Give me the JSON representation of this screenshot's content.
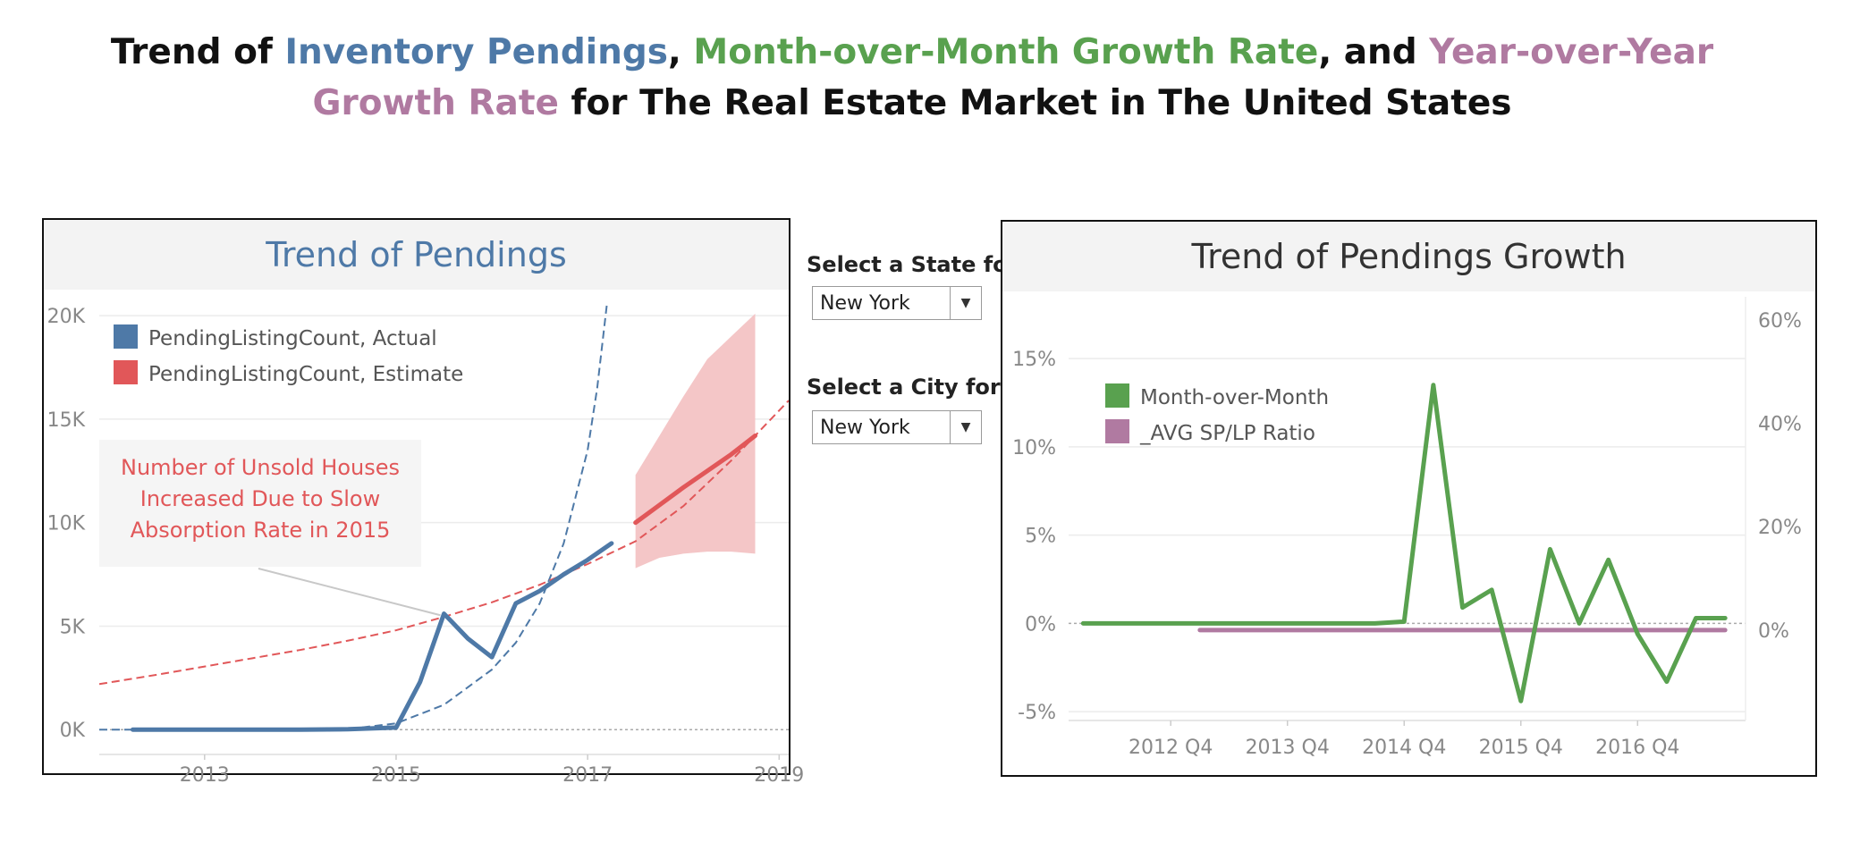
{
  "page": {
    "title_parts": [
      {
        "text": "Trend of ",
        "color": "#111111"
      },
      {
        "text": "Inventory Pendings",
        "color": "#4e79a7"
      },
      {
        "text": ", ",
        "color": "#111111"
      },
      {
        "text": "Month-over-Month Growth Rate",
        "color": "#59a14f"
      },
      {
        "text": ", and ",
        "color": "#111111"
      },
      {
        "text": "Year-over-Year Growth Rate",
        "color": "#b07aa1"
      },
      {
        "text": " for The Real Estate Market in The United States",
        "color": "#111111"
      }
    ]
  },
  "controls": {
    "state_label": "Select a State fo..",
    "state_value": "New York",
    "city_label": "Select a City for ..",
    "city_value": "New York"
  },
  "chart_data": [
    {
      "type": "line",
      "title": "Trend of Pendings",
      "x_ticks": [
        "2013",
        "2015",
        "2017",
        "2019"
      ],
      "y_ticks": [
        "0K",
        "5K",
        "10K",
        "15K",
        "20K"
      ],
      "xlim": [
        2011.9,
        2019.1
      ],
      "ylim": [
        -1200,
        21000
      ],
      "grid": true,
      "legend_position": "top-left",
      "series": [
        {
          "name": "PendingListingCount, Actual",
          "color": "#4e79a7",
          "x": [
            2012.25,
            2013.0,
            2014.0,
            2014.5,
            2015.0,
            2015.25,
            2015.5,
            2015.75,
            2016.0,
            2016.25,
            2016.5,
            2016.75,
            2017.0,
            2017.25
          ],
          "y": [
            0,
            0,
            0,
            20,
            100,
            2300,
            5600,
            4400,
            3500,
            6100,
            6700,
            7500,
            8200,
            9000
          ]
        },
        {
          "name": "PendingListingCount, Estimate",
          "color": "#e15759",
          "x": [
            2017.5,
            2017.75,
            2018.0,
            2018.25,
            2018.5,
            2018.75
          ],
          "y": [
            10000,
            10850,
            11700,
            12500,
            13300,
            14200
          ],
          "band_upper": [
            12300,
            14200,
            16100,
            17900,
            19000,
            20100
          ],
          "band_lower": [
            7800,
            8300,
            8500,
            8600,
            8600,
            8500
          ],
          "band_color": "#f4c6c7"
        }
      ],
      "trend_lines": [
        {
          "color": "#4e79a7",
          "x": [
            2011.9,
            2013.0,
            2014.0,
            2014.5,
            2015.0,
            2015.5,
            2016.0,
            2016.25,
            2016.5,
            2016.75,
            2017.0,
            2017.1,
            2017.2
          ],
          "y": [
            0,
            0,
            0,
            30,
            300,
            1200,
            2900,
            4200,
            6100,
            9000,
            13500,
            16500,
            20500
          ]
        },
        {
          "color": "#e15759",
          "x": [
            2011.9,
            2012.5,
            2013.0,
            2013.5,
            2014.0,
            2014.5,
            2015.0,
            2015.5,
            2016.0,
            2016.5,
            2017.0,
            2017.5,
            2018.0,
            2018.5,
            2019.1
          ],
          "y": [
            2200,
            2650,
            3050,
            3450,
            3850,
            4300,
            4800,
            5450,
            6150,
            7000,
            8000,
            9100,
            10800,
            13000,
            15900
          ]
        }
      ],
      "annotation": {
        "lines": [
          "Number of Unsold Houses",
          "Increased Due to Slow",
          "Absorption Rate in 2015"
        ],
        "color": "#e15759",
        "target_x": 2015.5,
        "target_y": 5700
      }
    },
    {
      "type": "line",
      "title": "Trend of Pendings Growth",
      "x_ticks": [
        "2012 Q4",
        "2013 Q4",
        "2014 Q4",
        "2015 Q4",
        "2016 Q4"
      ],
      "x_tick_positions": [
        3,
        7,
        11,
        15,
        19
      ],
      "xlim": [
        -0.5,
        22.7
      ],
      "y_left_ticks": [
        "-5%",
        "0%",
        "5%",
        "10%",
        "15%"
      ],
      "y_left_lim": [
        -5.5,
        18.5
      ],
      "y_right_ticks": [
        "0%",
        "20%",
        "40%",
        "60%"
      ],
      "y_right_lim": [
        -17.5,
        64.5
      ],
      "grid": true,
      "legend_position": "top-left",
      "series": [
        {
          "name": "Month-over-Month",
          "color": "#59a14f",
          "axis": "left",
          "x": [
            0,
            1,
            2,
            3,
            4,
            5,
            6,
            7,
            8,
            9,
            10,
            11,
            12,
            13,
            14,
            15,
            16,
            17,
            18,
            19,
            20,
            21,
            22
          ],
          "y": [
            0,
            0,
            0,
            0,
            0,
            0,
            0,
            0,
            0,
            0,
            0,
            0.1,
            13.5,
            0.9,
            1.9,
            -4.4,
            4.2,
            0,
            3.6,
            -0.6,
            -3.3,
            0.3,
            0.3
          ]
        },
        {
          "name": "_AVG SP/LP Ratio",
          "color": "#b07aa1",
          "axis": "right",
          "x": [
            4,
            5,
            6,
            7,
            8,
            9,
            10,
            11,
            12,
            13,
            14,
            15,
            16,
            17,
            18,
            19,
            20,
            21,
            22
          ],
          "y": [
            0,
            0,
            0,
            0,
            0,
            0,
            0,
            0,
            0,
            0,
            0,
            0,
            0,
            0,
            0,
            0,
            0,
            0,
            0
          ]
        }
      ]
    }
  ]
}
